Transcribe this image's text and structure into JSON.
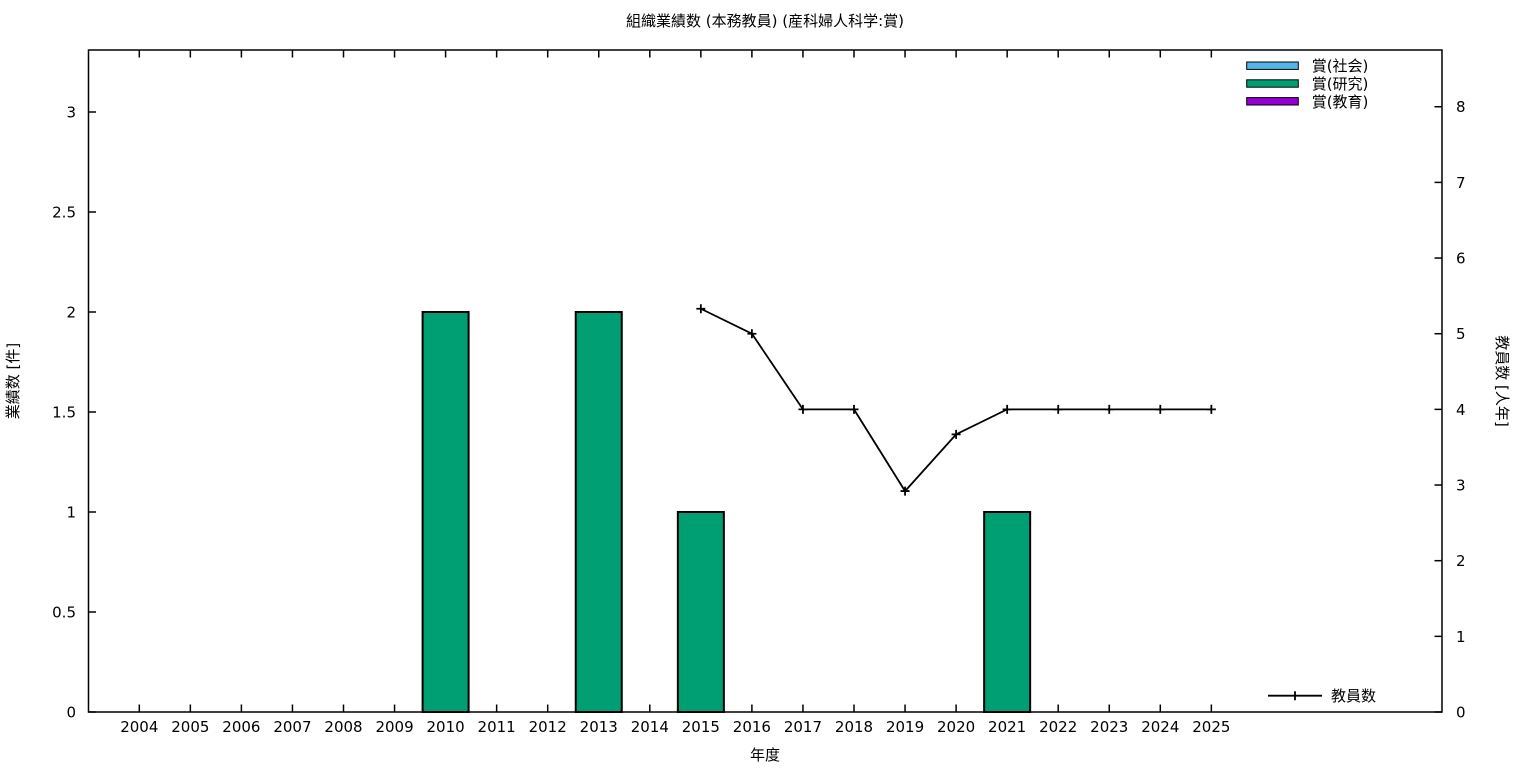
{
  "title": "組織業績数 (本務教員) (産科婦人科学:賞)",
  "axes": {
    "x": {
      "label": "年度"
    },
    "y_left": {
      "label": "業績数 [件]"
    },
    "y_right": {
      "label": "教員数 [人年]"
    }
  },
  "legend": {
    "items": [
      {
        "label": "賞(社会)",
        "color": "#56B4E9"
      },
      {
        "label": "賞(研究)",
        "color": "#009E73"
      },
      {
        "label": "賞(教育)",
        "color": "#9400D3"
      }
    ],
    "line_key": {
      "label": "教員数",
      "color": "#000000",
      "marker": "plus"
    }
  },
  "chart_data": {
    "type": "bar",
    "title": "組織業績数 (本務教員) (産科婦人科学:賞)",
    "xlabel": "年度",
    "ylabel": "業績数 [件]",
    "y2label": "教員数 [人年]",
    "grid": false,
    "legend_position": "top-right-inside",
    "categories": [
      2004,
      2005,
      2006,
      2007,
      2008,
      2009,
      2010,
      2011,
      2012,
      2013,
      2014,
      2015,
      2016,
      2017,
      2018,
      2019,
      2020,
      2021,
      2022,
      2023,
      2024,
      2025
    ],
    "yticks_left": [
      0,
      0.5,
      1,
      1.5,
      2,
      2.5,
      3
    ],
    "yticks_right": [
      0,
      1,
      2,
      3,
      4,
      5,
      6,
      7,
      8
    ],
    "ylim_left": [
      0,
      3.31
    ],
    "ylim_right": [
      0,
      8.75
    ],
    "xlim": [
      2003,
      2029.5
    ],
    "series": [
      {
        "name": "賞(社会)",
        "type": "bar",
        "axis": "left",
        "color": "#56B4E9",
        "values": [
          0,
          0,
          0,
          0,
          0,
          0,
          0,
          0,
          0,
          0,
          0,
          0,
          0,
          0,
          0,
          0,
          0,
          0,
          0,
          0,
          0,
          0
        ]
      },
      {
        "name": "賞(研究)",
        "type": "bar",
        "axis": "left",
        "color": "#009E73",
        "values": [
          0,
          0,
          0,
          0,
          0,
          0,
          2,
          0,
          0,
          2,
          0,
          1,
          0,
          0,
          0,
          0,
          0,
          1,
          0,
          0,
          0,
          0
        ]
      },
      {
        "name": "賞(教育)",
        "type": "bar",
        "axis": "left",
        "color": "#9400D3",
        "values": [
          0,
          0,
          0,
          0,
          0,
          0,
          0,
          0,
          0,
          0,
          0,
          0,
          0,
          0,
          0,
          0,
          0,
          0,
          0,
          0,
          0,
          0
        ]
      },
      {
        "name": "教員数",
        "type": "line",
        "axis": "right",
        "color": "#000000",
        "marker": "plus",
        "values": [
          null,
          null,
          null,
          null,
          null,
          null,
          null,
          null,
          null,
          null,
          null,
          5.33,
          5.0,
          4.0,
          4.0,
          2.92,
          3.67,
          4.0,
          4.0,
          4.0,
          4.0,
          4.0
        ]
      }
    ]
  }
}
